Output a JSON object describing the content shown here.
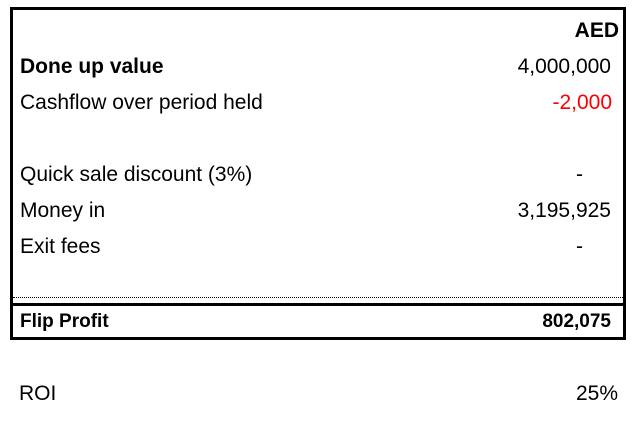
{
  "table": {
    "currency": "AED",
    "rows": [
      {
        "label": "Done up value",
        "value": "4,000,000"
      },
      {
        "label": "Cashflow over period held",
        "value": "-2,000"
      },
      {
        "label": "Quick sale discount (3%)",
        "value": "-"
      },
      {
        "label": "Money in",
        "value": "3,195,925"
      },
      {
        "label": "Exit fees",
        "value": "-"
      }
    ],
    "total": {
      "label": "Flip Profit",
      "value": "802,075"
    }
  },
  "roi": {
    "label": "ROI",
    "value": "25%"
  },
  "colors": {
    "negative": "#ff0000",
    "border": "#000000"
  }
}
